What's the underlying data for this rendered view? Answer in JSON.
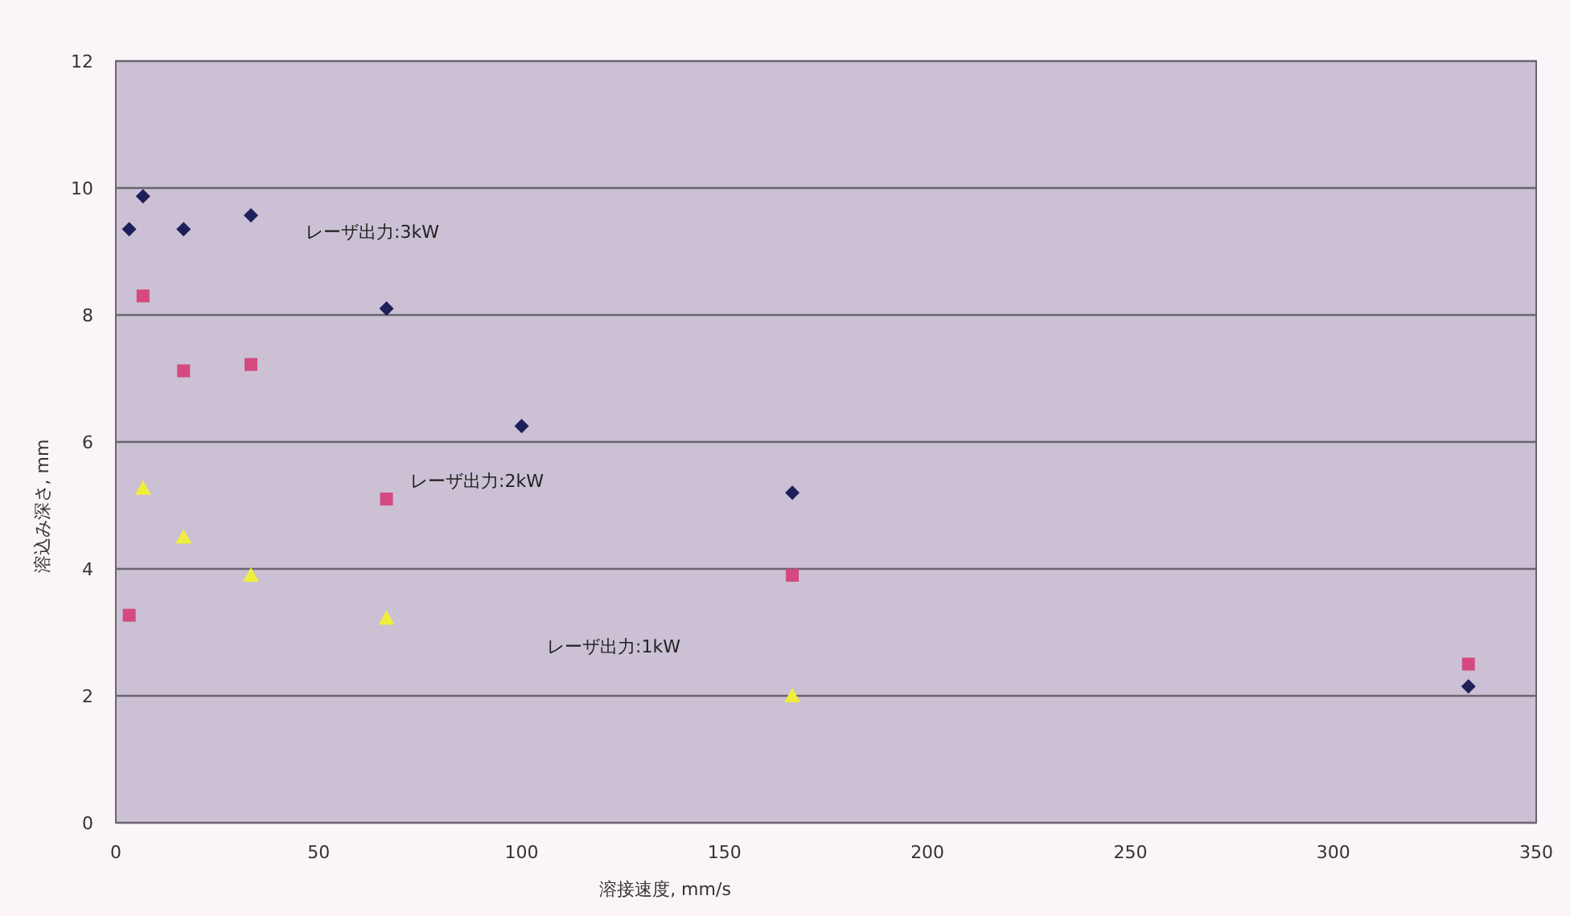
{
  "chart_data": {
    "type": "scatter",
    "xlabel": "溶接速度, mm/s",
    "ylabel": "溶込み深さ, mm",
    "xlim": [
      0,
      350
    ],
    "xticks": [
      0,
      50,
      100,
      150,
      200,
      250,
      300,
      350
    ],
    "ylim": [
      0,
      12
    ],
    "yticks": [
      0,
      2,
      4,
      6,
      8,
      10,
      12
    ],
    "grid": "y",
    "series": [
      {
        "color": "#1f1f5a",
        "marker": "diamond",
        "x": [
          3.3,
          6.7,
          16.7,
          33.3,
          66.7,
          100,
          166.7,
          333.3
        ],
        "values": [
          9.35,
          9.87,
          9.35,
          9.57,
          8.1,
          6.25,
          5.2,
          2.15
        ]
      },
      {
        "color": "#d44a80",
        "marker": "square",
        "x": [
          3.3,
          6.7,
          16.7,
          33.3,
          66.7,
          166.7,
          333.3
        ],
        "values": [
          3.27,
          8.3,
          7.12,
          7.22,
          5.1,
          3.9,
          2.5
        ]
      },
      {
        "color": "#f0ee3c",
        "marker": "triangle",
        "x": [
          6.7,
          16.7,
          33.3,
          66.7,
          166.7
        ],
        "values": [
          5.27,
          4.5,
          3.9,
          3.22,
          2.0
        ]
      }
    ],
    "annotations": [
      "レーザ出力:3kW",
      "レーザ出力:2kW",
      "レーザ出力:1kW"
    ]
  }
}
